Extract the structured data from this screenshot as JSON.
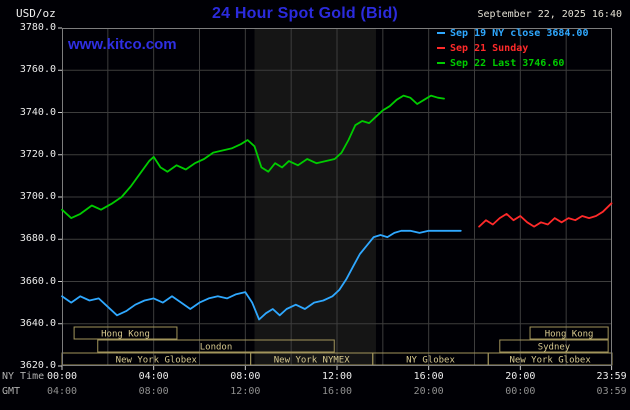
{
  "header": {
    "units_label": "USD/oz",
    "title": "24 Hour Spot Gold (Bid)",
    "datetime": "September 22, 2025 16:40",
    "watermark": "www.kitco.com"
  },
  "legend": {
    "items": [
      {
        "text": "Sep 19 NY close 3684.00",
        "color": "#2fa8ff"
      },
      {
        "text": "Sep 21 Sunday",
        "color": "#ff2a2a"
      },
      {
        "text": "Sep 22 Last 3746.60",
        "color": "#00cc00"
      }
    ]
  },
  "axes": {
    "y_label_values": [
      "3780.0",
      "3760.0",
      "3740.0",
      "3720.0",
      "3700.0",
      "3680.0",
      "3660.0",
      "3640.0",
      "3620.0"
    ],
    "x_row1_label": "NY Time",
    "x_row2_label": "GMT",
    "x_ticks": [
      {
        "hour": 0,
        "ny": "00:00",
        "gmt": "04:00"
      },
      {
        "hour": 4,
        "ny": "04:00",
        "gmt": "08:00"
      },
      {
        "hour": 8,
        "ny": "08:00",
        "gmt": "12:00"
      },
      {
        "hour": 12,
        "ny": "12:00",
        "gmt": "16:00"
      },
      {
        "hour": 16,
        "ny": "16:00",
        "gmt": "20:00"
      },
      {
        "hour": 20,
        "ny": "20:00",
        "gmt": "00:00"
      },
      {
        "hour": 23.983,
        "ny": "23:59",
        "gmt": "03:59"
      }
    ]
  },
  "sessions": [
    {
      "label": "Hong Kong",
      "row": 0,
      "start": 0.022,
      "end": 0.209
    },
    {
      "label": "Hong Kong",
      "row": 0,
      "start": 0.851,
      "end": 0.993
    },
    {
      "label": "London",
      "row": 1,
      "start": 0.065,
      "end": 0.495
    },
    {
      "label": "Sydney",
      "row": 1,
      "start": 0.796,
      "end": 0.993
    },
    {
      "label": "New York Globex",
      "row": 2,
      "start": 0.0,
      "end": 0.343
    },
    {
      "label": "New York NYMEX",
      "row": 2,
      "start": 0.343,
      "end": 0.565
    },
    {
      "label": "NY Globex",
      "row": 2,
      "start": 0.565,
      "end": 0.775
    },
    {
      "label": "New York Globex",
      "row": 2,
      "start": 0.775,
      "end": 1.0
    }
  ],
  "chart_data": {
    "type": "line",
    "title": "24 Hour Spot Gold (Bid)",
    "ylabel": "USD/oz",
    "xlabel": "NY Time",
    "ylim": [
      3620,
      3780
    ],
    "xlim_hours": [
      0,
      24
    ],
    "y_grid_step": 20,
    "x_grid_step_hours": 2,
    "grid": true,
    "legend_position": "top-right",
    "shaded_band_hours": [
      8.4,
      13.7
    ],
    "series": [
      {
        "name": "Sep 19 NY close 3684.00",
        "color": "#2fa8ff",
        "points": [
          [
            0,
            3653
          ],
          [
            0.4,
            3650
          ],
          [
            0.8,
            3653
          ],
          [
            1.2,
            3651
          ],
          [
            1.6,
            3652
          ],
          [
            2.0,
            3648
          ],
          [
            2.4,
            3644
          ],
          [
            2.8,
            3646
          ],
          [
            3.2,
            3649
          ],
          [
            3.6,
            3651
          ],
          [
            4.0,
            3652
          ],
          [
            4.4,
            3650
          ],
          [
            4.8,
            3653
          ],
          [
            5.2,
            3650
          ],
          [
            5.6,
            3647
          ],
          [
            6.0,
            3650
          ],
          [
            6.4,
            3652
          ],
          [
            6.8,
            3653
          ],
          [
            7.2,
            3652
          ],
          [
            7.6,
            3654
          ],
          [
            8.0,
            3655
          ],
          [
            8.3,
            3650
          ],
          [
            8.6,
            3642
          ],
          [
            8.9,
            3645
          ],
          [
            9.2,
            3647
          ],
          [
            9.5,
            3644
          ],
          [
            9.8,
            3647
          ],
          [
            10.2,
            3649
          ],
          [
            10.6,
            3647
          ],
          [
            11.0,
            3650
          ],
          [
            11.4,
            3651
          ],
          [
            11.8,
            3653
          ],
          [
            12.1,
            3656
          ],
          [
            12.4,
            3661
          ],
          [
            12.7,
            3667
          ],
          [
            13.0,
            3673
          ],
          [
            13.3,
            3677
          ],
          [
            13.6,
            3681
          ],
          [
            13.9,
            3682
          ],
          [
            14.2,
            3681
          ],
          [
            14.5,
            3683
          ],
          [
            14.8,
            3684
          ],
          [
            15.2,
            3684
          ],
          [
            15.6,
            3683
          ],
          [
            16.0,
            3684
          ],
          [
            16.5,
            3684
          ],
          [
            17.0,
            3684
          ],
          [
            17.4,
            3684
          ]
        ]
      },
      {
        "name": "Sep 21 Sunday",
        "color": "#ff2a2a",
        "points": [
          [
            18.2,
            3686
          ],
          [
            18.5,
            3689
          ],
          [
            18.8,
            3687
          ],
          [
            19.1,
            3690
          ],
          [
            19.4,
            3692
          ],
          [
            19.7,
            3689
          ],
          [
            20.0,
            3691
          ],
          [
            20.3,
            3688
          ],
          [
            20.6,
            3686
          ],
          [
            20.9,
            3688
          ],
          [
            21.2,
            3687
          ],
          [
            21.5,
            3690
          ],
          [
            21.8,
            3688
          ],
          [
            22.1,
            3690
          ],
          [
            22.4,
            3689
          ],
          [
            22.7,
            3691
          ],
          [
            23.0,
            3690
          ],
          [
            23.3,
            3691
          ],
          [
            23.6,
            3693
          ],
          [
            23.98,
            3697
          ]
        ]
      },
      {
        "name": "Sep 22 Last 3746.60",
        "color": "#00cc00",
        "points": [
          [
            0,
            3694
          ],
          [
            0.4,
            3690
          ],
          [
            0.8,
            3692
          ],
          [
            1.3,
            3696
          ],
          [
            1.7,
            3694
          ],
          [
            2.2,
            3697
          ],
          [
            2.6,
            3700
          ],
          [
            3.0,
            3705
          ],
          [
            3.4,
            3711
          ],
          [
            3.8,
            3717
          ],
          [
            4.0,
            3719
          ],
          [
            4.3,
            3714
          ],
          [
            4.6,
            3712
          ],
          [
            5.0,
            3715
          ],
          [
            5.4,
            3713
          ],
          [
            5.8,
            3716
          ],
          [
            6.2,
            3718
          ],
          [
            6.6,
            3721
          ],
          [
            7.0,
            3722
          ],
          [
            7.4,
            3723
          ],
          [
            7.8,
            3725
          ],
          [
            8.1,
            3727
          ],
          [
            8.4,
            3724
          ],
          [
            8.7,
            3714
          ],
          [
            9.0,
            3712
          ],
          [
            9.3,
            3716
          ],
          [
            9.6,
            3714
          ],
          [
            9.9,
            3717
          ],
          [
            10.3,
            3715
          ],
          [
            10.7,
            3718
          ],
          [
            11.1,
            3716
          ],
          [
            11.5,
            3717
          ],
          [
            11.9,
            3718
          ],
          [
            12.2,
            3721
          ],
          [
            12.5,
            3727
          ],
          [
            12.8,
            3734
          ],
          [
            13.1,
            3736
          ],
          [
            13.4,
            3735
          ],
          [
            13.7,
            3738
          ],
          [
            14.0,
            3741
          ],
          [
            14.3,
            3743
          ],
          [
            14.6,
            3746
          ],
          [
            14.9,
            3748
          ],
          [
            15.2,
            3747
          ],
          [
            15.5,
            3744
          ],
          [
            15.8,
            3746
          ],
          [
            16.1,
            3748
          ],
          [
            16.4,
            3747
          ],
          [
            16.67,
            3746.6
          ]
        ]
      }
    ]
  },
  "colors": {
    "background": "#000005",
    "title_blue": "#2b2bdd",
    "grid": "#3d3d3d",
    "plot_border": "#7d7d7d",
    "session_tan": "#d6c88e",
    "band": "#151515"
  }
}
